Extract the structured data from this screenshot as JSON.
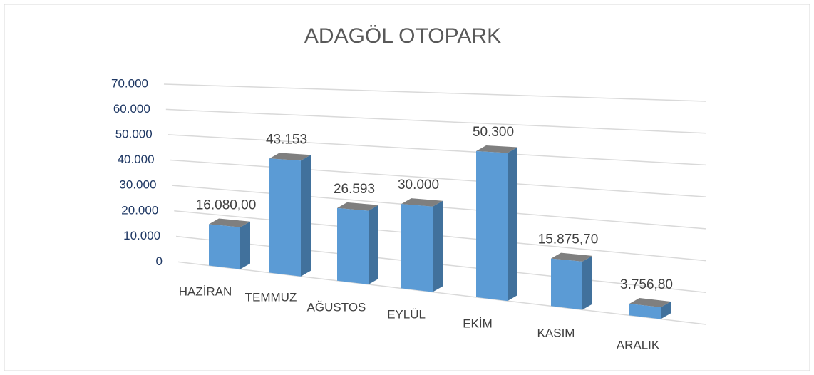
{
  "chart_data": {
    "type": "bar3d",
    "title": "ADAGÖL OTOPARK",
    "categories": [
      "HAZİRAN",
      "TEMMUZ",
      "AĞUSTOS",
      "EYLÜL",
      "EKİM",
      "KASIM",
      "ARALIK"
    ],
    "values": [
      16080,
      43153,
      26593,
      30000,
      50300,
      15875.7,
      3756.8
    ],
    "value_labels": [
      "16.080,00",
      "43.153",
      "26.593",
      "30.000",
      "50.300",
      "15.875,70",
      "3.756,80"
    ],
    "color": "#5b9bd5",
    "ylim": [
      0,
      70000
    ],
    "yticks": [
      0,
      {
        "value": 10000,
        "label": "10.000"
      },
      {
        "value": 20000,
        "label": "20.000"
      },
      {
        "value": 30000,
        "label": "30.000"
      },
      {
        "value": 40000,
        "label": "40.000"
      },
      {
        "value": 50000,
        "label": "50.000"
      },
      {
        "value": 60000,
        "label": "60.000"
      },
      {
        "value": 70000,
        "label": "70.000"
      }
    ],
    "grid": true
  }
}
